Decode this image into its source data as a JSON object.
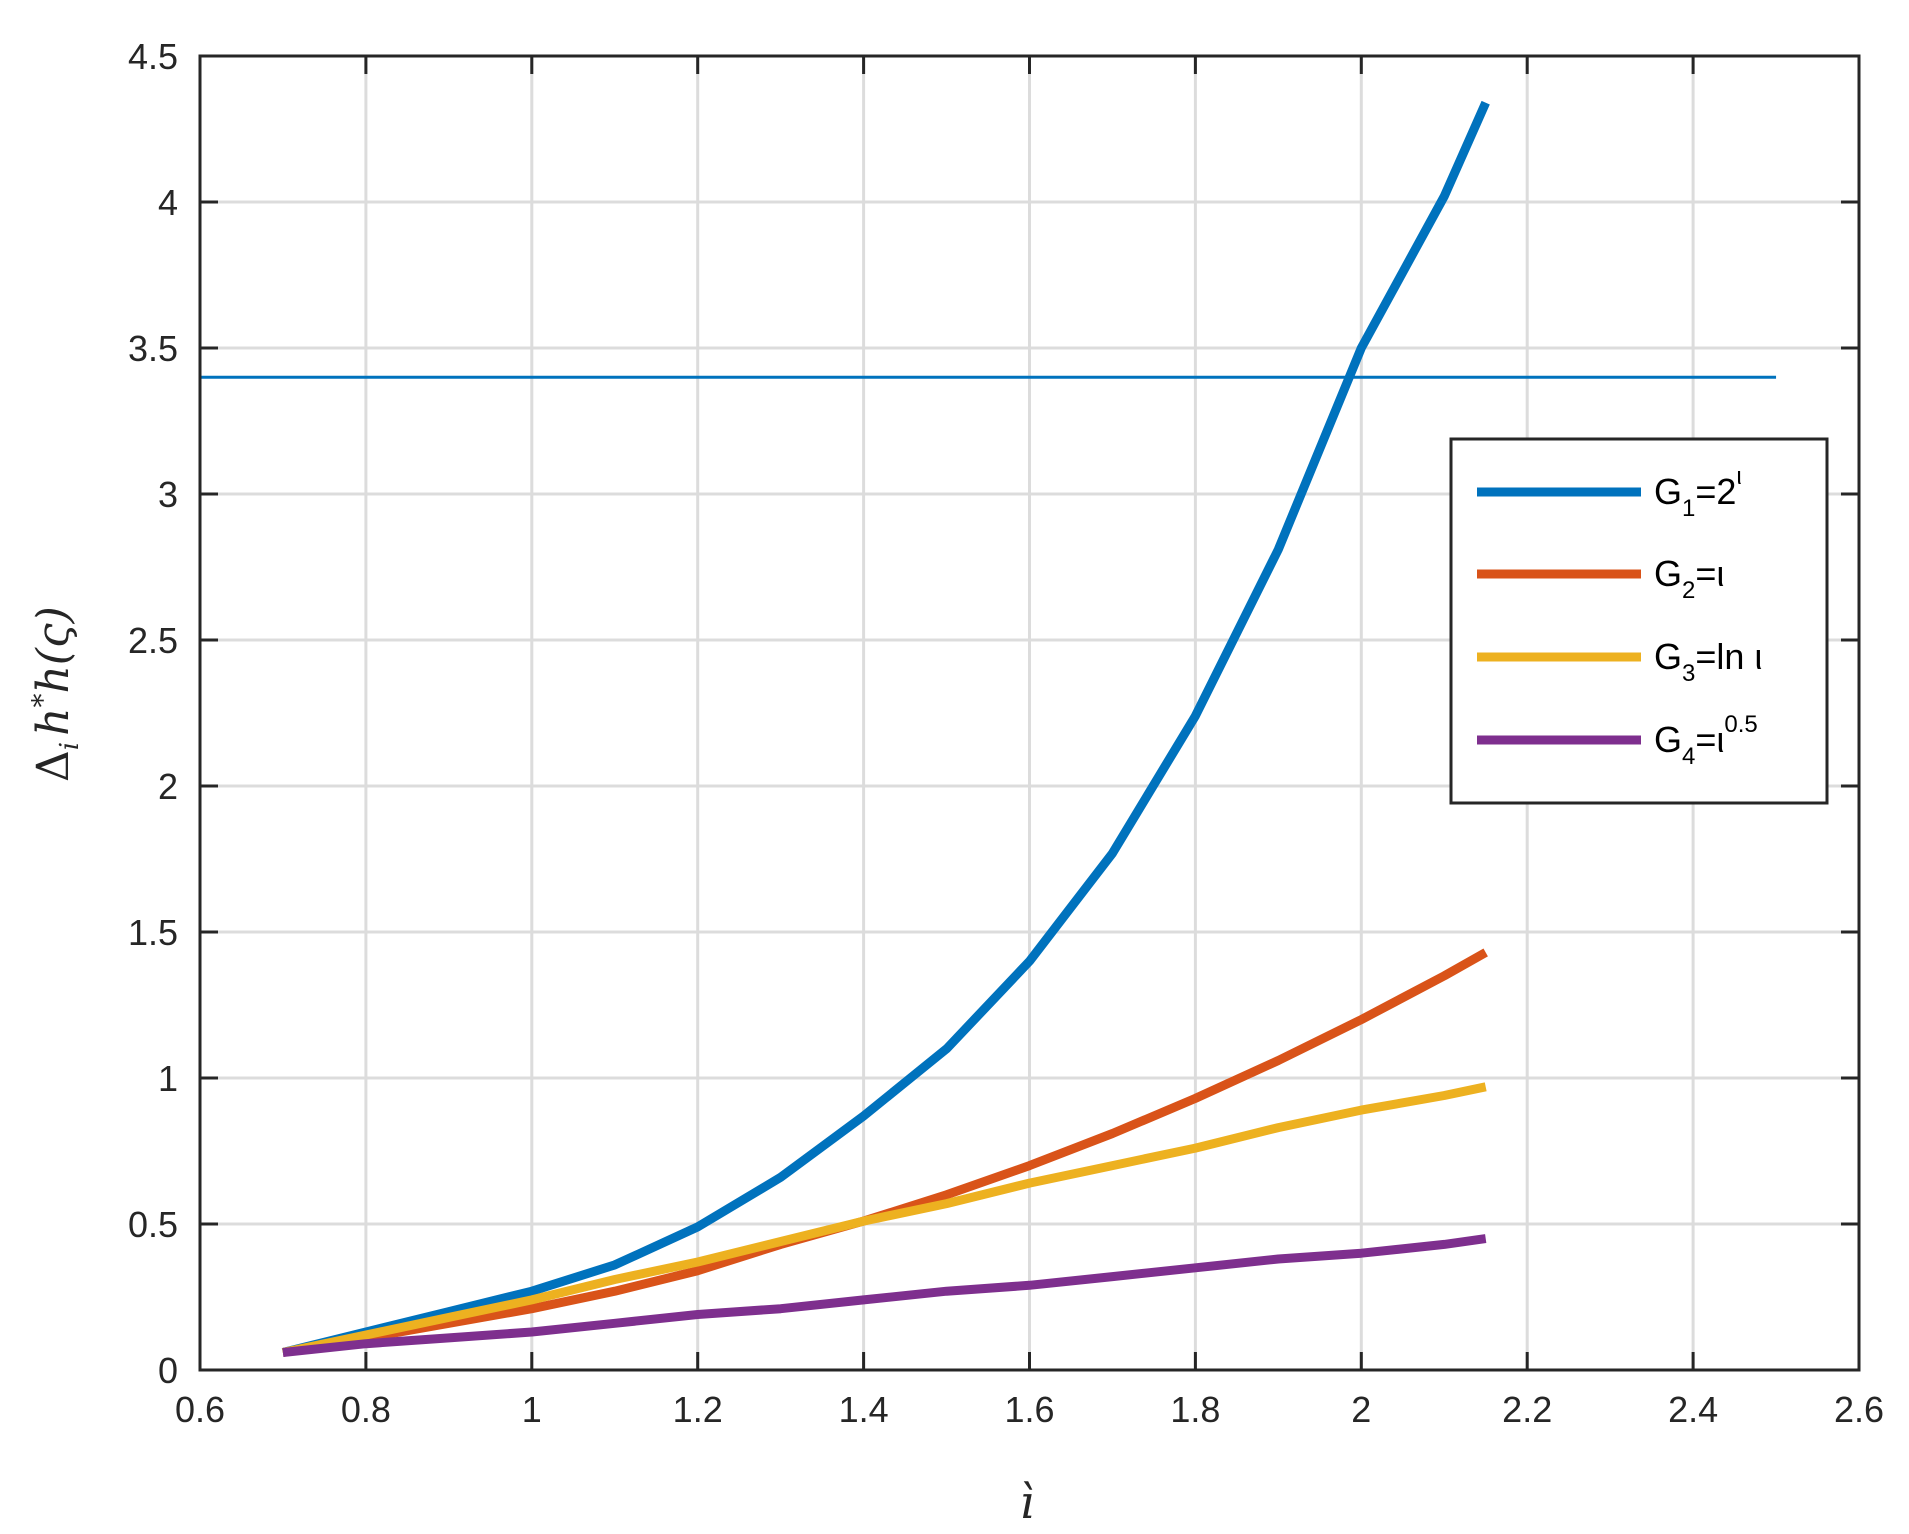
{
  "chart_data": {
    "type": "line",
    "xlabel": "ì",
    "ylabel_parts": {
      "base": "Δ",
      "sub": "i",
      "mid": "h",
      "sup": "*",
      "tail": "h(ς)"
    },
    "xlim": [
      0.6,
      2.6
    ],
    "ylim": [
      0,
      4.5
    ],
    "xticks": [
      "0.6",
      "0.8",
      "1",
      "1.2",
      "1.4",
      "1.6",
      "1.8",
      "2",
      "2.2",
      "2.4",
      "2.6"
    ],
    "yticks": [
      "0",
      "0.5",
      "1",
      "1.5",
      "2",
      "2.5",
      "3",
      "3.5",
      "4",
      "4.5"
    ],
    "grid": true,
    "legend_position": "right",
    "x": [
      0.7,
      0.8,
      0.9,
      1.0,
      1.1,
      1.2,
      1.3,
      1.4,
      1.5,
      1.6,
      1.7,
      1.8,
      1.9,
      2.0,
      2.1,
      2.15
    ],
    "series": [
      {
        "legend": {
          "base": "G",
          "sub": "1",
          "rest": "=2",
          "sup": "ι"
        },
        "color": "#0072BD",
        "values": [
          0.06,
          0.13,
          0.2,
          0.27,
          0.36,
          0.49,
          0.66,
          0.87,
          1.1,
          1.4,
          1.77,
          2.24,
          2.81,
          3.5,
          4.02,
          4.34
        ]
      },
      {
        "legend": {
          "base": "G",
          "sub": "2",
          "rest": "=ι",
          "sup": ""
        },
        "color": "#D95319",
        "values": [
          0.06,
          0.11,
          0.16,
          0.21,
          0.27,
          0.34,
          0.43,
          0.51,
          0.6,
          0.7,
          0.81,
          0.93,
          1.06,
          1.2,
          1.35,
          1.43
        ]
      },
      {
        "legend": {
          "base": "G",
          "sub": "3",
          "rest": "=ln ι",
          "sup": ""
        },
        "color": "#EDB120",
        "values": [
          0.06,
          0.12,
          0.18,
          0.24,
          0.31,
          0.37,
          0.44,
          0.51,
          0.57,
          0.64,
          0.7,
          0.76,
          0.83,
          0.89,
          0.94,
          0.97
        ]
      },
      {
        "legend": {
          "base": "G",
          "sub": "4",
          "rest": "=ι",
          "sup": "0.5"
        },
        "color": "#7E2F8E",
        "values": [
          0.06,
          0.09,
          0.11,
          0.13,
          0.16,
          0.19,
          0.21,
          0.24,
          0.27,
          0.29,
          0.32,
          0.35,
          0.38,
          0.4,
          0.43,
          0.45
        ]
      }
    ],
    "reference_line": {
      "y": 3.4,
      "x_range": [
        0.6,
        2.5
      ],
      "color": "#0072BD"
    }
  }
}
